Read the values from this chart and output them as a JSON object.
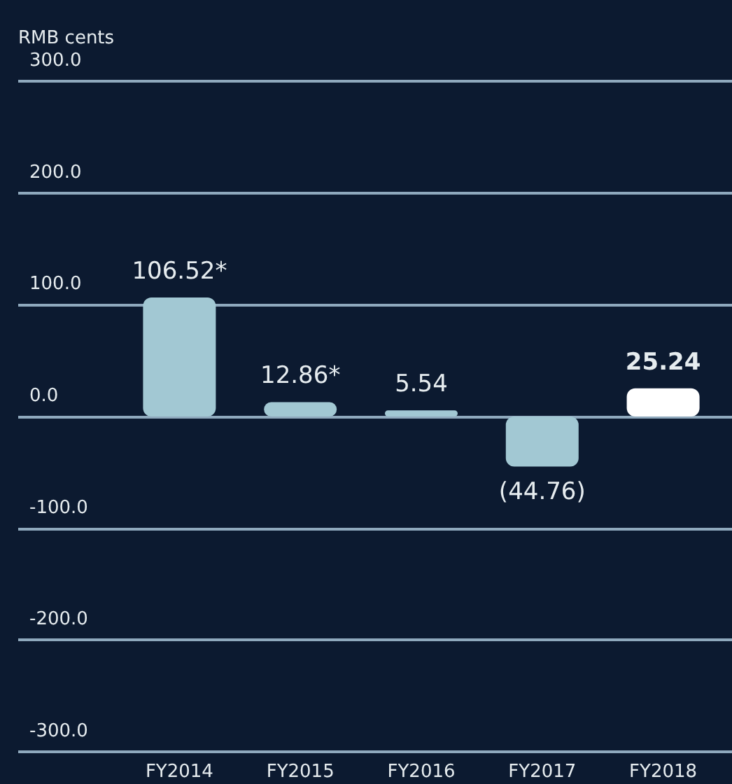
{
  "chart_data": {
    "type": "bar",
    "ylabel": "RMB cents",
    "categories": [
      "FY2014",
      "FY2015",
      "FY2016",
      "FY2017",
      "FY2018"
    ],
    "values": [
      106.52,
      12.86,
      5.54,
      -44.76,
      25.24
    ],
    "value_labels": [
      "106.52*",
      "12.86*",
      "5.54",
      "(44.76)",
      "25.24"
    ],
    "colors": [
      "#a2c8d3",
      "#a2c8d3",
      "#a2c8d3",
      "#a2c8d3",
      "#ffffff"
    ],
    "ylim": [
      -300,
      300
    ],
    "yticks": [
      {
        "value": -300,
        "label": "-300.0"
      },
      {
        "value": -200,
        "label": "-200.0"
      },
      {
        "value": -100,
        "label": "-100.0"
      },
      {
        "value": 0,
        "label": "0.0"
      },
      {
        "value": 100,
        "label": "100.0"
      },
      {
        "value": 200,
        "label": "200.0"
      },
      {
        "value": 300,
        "label": "300.0"
      }
    ],
    "grid": "y"
  }
}
